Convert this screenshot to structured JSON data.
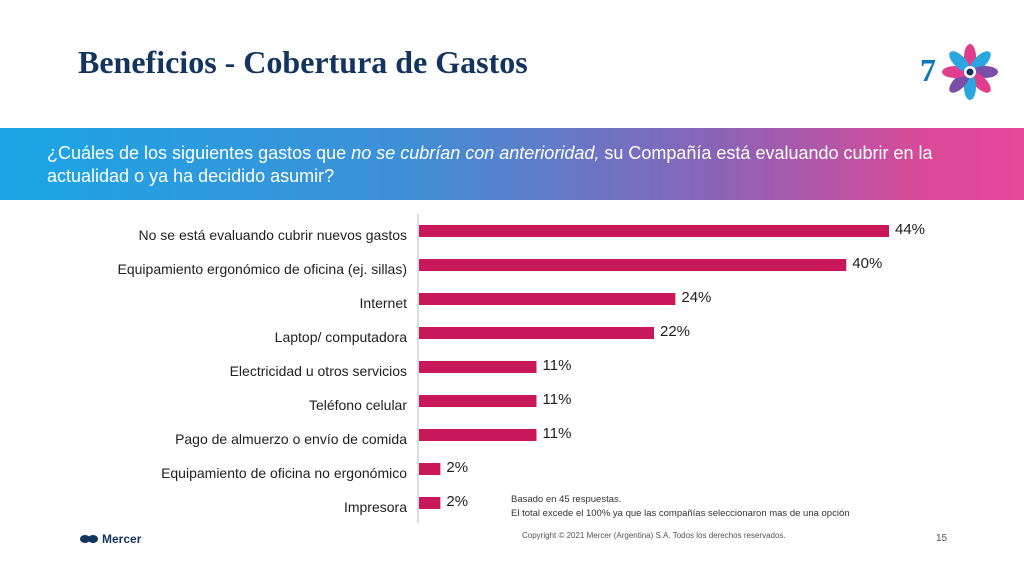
{
  "slide": {
    "title": "Beneficios - Cobertura de Gastos",
    "logo_number": "7",
    "question_part1": "¿Cuáles de los siguientes gastos que ",
    "question_italic": "no se cubrían con anterioridad,",
    "question_part2": " su Compañía está evaluando cubrir en la actualidad o ya ha decidido asumir?",
    "note_line1": "Basado en 45 respuestas.",
    "note_line2": "El total excede el 100% ya que las compañías seleccionaron mas de una opción",
    "brand": "Mercer",
    "copyright": "Copyright © 2021 Mercer (Argentina) S.A. Todos los derechos reservados.",
    "page_number": "15"
  },
  "colors": {
    "bar": "#c8185a",
    "title": "#12345f"
  },
  "chart_data": {
    "type": "bar",
    "orientation": "horizontal",
    "categories": [
      "No se está evaluando cubrir nuevos gastos",
      "Equipamiento ergonómico de oficina (ej. sillas)",
      "Internet",
      "Laptop/ computadora",
      "Electricidad u otros servicios",
      "Teléfono celular",
      "Pago de almuerzo o envío de comida",
      "Equipamiento de oficina no ergonómico",
      "Impresora"
    ],
    "values": [
      44,
      40,
      24,
      22,
      11,
      11,
      11,
      2,
      2
    ],
    "labels": [
      "44%",
      "40%",
      "24%",
      "22%",
      "11%",
      "11%",
      "11%",
      "2%",
      "2%"
    ],
    "unit": "%",
    "xlim": [
      0,
      44
    ],
    "grid": false,
    "legend": "none"
  }
}
